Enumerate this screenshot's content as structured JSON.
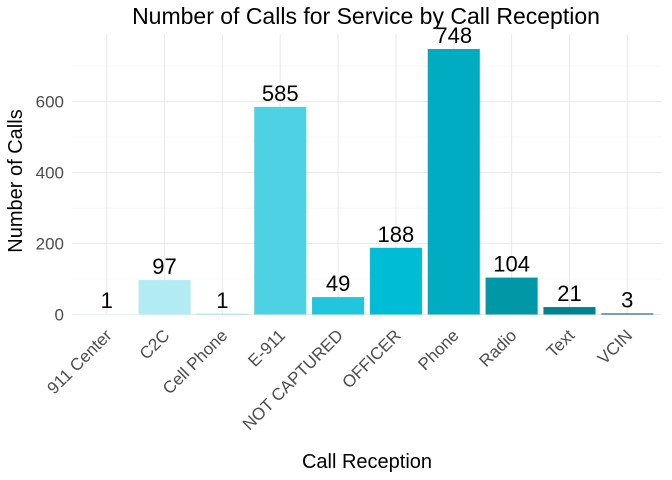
{
  "chart_data": {
    "type": "bar",
    "title": "Number of Calls for Service by Call Reception",
    "xlabel": "Call Reception",
    "ylabel": "Number of Calls",
    "categories": [
      "911 Center",
      "C2C",
      "Cell Phone",
      "E-911",
      "NOT CAPTURED",
      "OFFICER",
      "Phone",
      "Radio",
      "Text",
      "VCIN"
    ],
    "values": [
      1,
      97,
      1,
      585,
      49,
      188,
      748,
      104,
      21,
      3
    ],
    "colors": [
      "#e8f9fc",
      "#b3ebf3",
      "#8ee0ec",
      "#4dd2e4",
      "#1fc6dc",
      "#00bcd4",
      "#00acc1",
      "#0097a7",
      "#00838f",
      "#006064"
    ],
    "ylim": [
      0,
      748
    ],
    "yticks": [
      0,
      200,
      400,
      600
    ],
    "grid": true,
    "legend": "none"
  }
}
